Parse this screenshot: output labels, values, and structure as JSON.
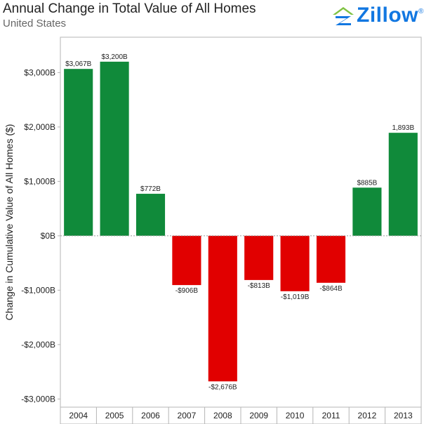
{
  "header": {
    "title": "Annual Change in Total Value of All Homes",
    "subtitle": "United States"
  },
  "logo": {
    "text": "Zillow",
    "mark": "®",
    "icon": "zillow-house-icon"
  },
  "colors": {
    "positive": "#108a3a",
    "negative": "#e10000",
    "zero_line": "#9a9a9a",
    "frame": "#b5b5b5"
  },
  "chart_data": {
    "type": "bar",
    "title": "Annual Change in Total Value of All Homes",
    "subtitle": "United States",
    "xlabel": "",
    "ylabel": "Change in Cumulative Value of All Homes ($)",
    "categories": [
      "2004",
      "2005",
      "2006",
      "2007",
      "2008",
      "2009",
      "2010",
      "2011",
      "2012",
      "2013"
    ],
    "values": [
      3067,
      3200,
      772,
      -906,
      -2676,
      -813,
      -1019,
      -864,
      885,
      1893
    ],
    "data_labels": [
      "$3,067B",
      "$3,200B",
      "$772B",
      "-$906B",
      "-$2,676B",
      "-$813B",
      "-$1,019B",
      "-$864B",
      "$885B",
      "1,893B"
    ],
    "yticks": [
      3000,
      2000,
      1000,
      0,
      -1000,
      -2000,
      -3000
    ],
    "ytick_labels": [
      "$3,000B",
      "$2,000B",
      "$1,000B",
      "$0B",
      "-$1,000B",
      "-$2,000B",
      "-$3,000B"
    ],
    "ylim": [
      -3150,
      3650
    ],
    "grid": false,
    "legend": "none"
  }
}
